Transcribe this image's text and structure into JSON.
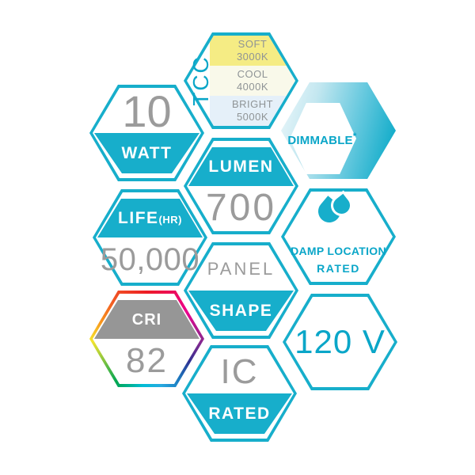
{
  "colors": {
    "teal": "#17aecb",
    "teal_text": "#0aa6c8",
    "gray_text": "#9b9b9b",
    "soft_band": "#f5ec84",
    "cool_band": "#f9f9ea",
    "bright_band": "#e5f0f9",
    "cri_trapezoid_gray": "#969696",
    "cri_rainbow": [
      "#ed1c24",
      "#ec008c",
      "#92278f",
      "#2e3192",
      "#1c75bc",
      "#27aae1",
      "#00bdd6",
      "#00a651",
      "#8dc63f",
      "#f5e52d",
      "#f7941d",
      "#f15a24"
    ]
  },
  "badges": {
    "cct": {
      "label": "CCT",
      "bands": [
        {
          "name": "SOFT",
          "kelvin": "3000K"
        },
        {
          "name": "COOL",
          "kelvin": "4000K"
        },
        {
          "name": "BRIGHT",
          "kelvin": "5000K"
        }
      ]
    },
    "watt": {
      "value": "10",
      "label": "WATT"
    },
    "dimmable": {
      "label": "DIMMABLE",
      "note_mark": "*"
    },
    "lumen": {
      "label": "LUMEN",
      "value": "700"
    },
    "life": {
      "label": "LIFE",
      "unit": "(HR)",
      "value": "50,000"
    },
    "damp_location": {
      "icon": "water-drops-icon",
      "line1": "DAMP LOCATION",
      "line2": "RATED"
    },
    "panel_shape": {
      "line1": "PANEL",
      "label": "SHAPE"
    },
    "cri": {
      "label": "CRI",
      "value": "82"
    },
    "voltage": {
      "value": "120 V"
    },
    "ic": {
      "value": "IC",
      "label": "RATED"
    }
  }
}
